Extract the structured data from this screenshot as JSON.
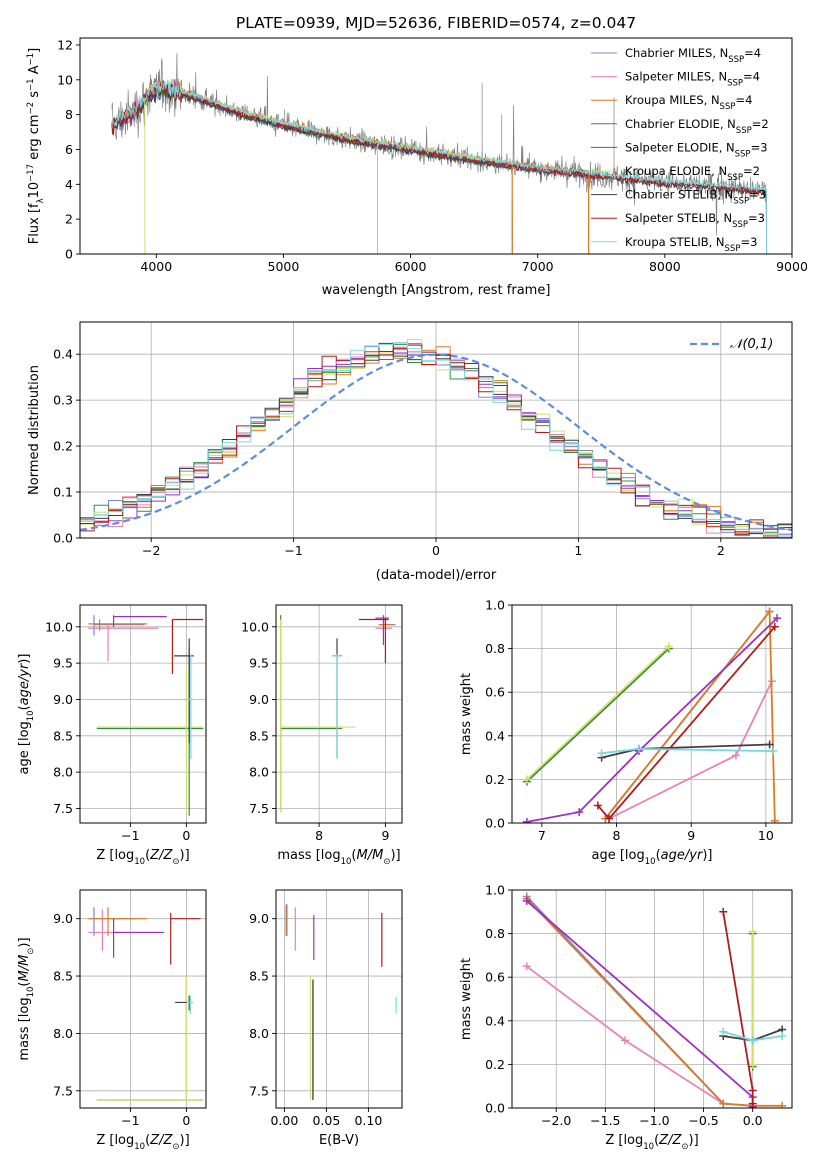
{
  "title": "PLATE=0939, MJD=52636, FIBERID=0574, z=0.047",
  "colors": {
    "Chabrier MILES": "#7b86d6",
    "Salpeter MILES": "#e883b9",
    "Kroupa MILES": "#dc7a22",
    "Chabrier ELODIE": "#3b8a3b",
    "Salpeter ELODIE": "#9b2fc2",
    "Kroupa ELODIE": "#cfe36c",
    "Chabrier STELIB": "#3f3f3f",
    "Salpeter STELIB": "#b01c1c",
    "Kroupa STELIB": "#78d8e0",
    "observed": "#808080",
    "normal": "#5a8fe0",
    "grid": "#b0b0b0"
  },
  "chart_data": [
    {
      "panel": "spectrum",
      "type": "line",
      "title": "PLATE=0939, MJD=52636, FIBERID=0574, z=0.047",
      "xlabel": "wavelength [Angstrom, rest frame]",
      "ylabel": "Flux [f_λ10^-17 erg cm^-2 s^-1 A^-1]",
      "xlim": [
        3400,
        9000
      ],
      "ylim": [
        0,
        12.4
      ],
      "xticks": [
        "4000",
        "5000",
        "6000",
        "7000",
        "8000",
        "9000"
      ],
      "yticks": [
        "0",
        "2",
        "4",
        "6",
        "8",
        "10",
        "12"
      ],
      "grid": false,
      "legend_position": "top-right",
      "legend": [
        {
          "name": "Chabrier MILES",
          "nssp": "4"
        },
        {
          "name": "Salpeter MILES",
          "nssp": "4"
        },
        {
          "name": "Kroupa MILES",
          "nssp": "4"
        },
        {
          "name": "Chabrier ELODIE",
          "nssp": "2"
        },
        {
          "name": "Salpeter ELODIE",
          "nssp": "3"
        },
        {
          "name": "Kroupa ELODIE",
          "nssp": "2"
        },
        {
          "name": "Chabrier STELIB",
          "nssp": "3"
        },
        {
          "name": "Salpeter STELIB",
          "nssp": "3"
        },
        {
          "name": "Kroupa STELIB",
          "nssp": "3"
        }
      ],
      "continuum": {
        "x": [
          3650,
          3800,
          3950,
          4050,
          4300,
          4700,
          5000,
          5500,
          6000,
          6500,
          7000,
          7500,
          8000,
          8500,
          8800
        ],
        "y": [
          7.4,
          8.0,
          9.2,
          9.6,
          9.0,
          8.0,
          7.4,
          6.6,
          6.0,
          5.4,
          4.9,
          4.5,
          4.1,
          3.8,
          3.6
        ]
      },
      "model_range": {
        "MILES": [
          3650,
          7400
        ],
        "ELODIE": [
          3900,
          6800
        ],
        "STELIB": [
          3650,
          8800
        ]
      }
    },
    {
      "panel": "residuals",
      "type": "histogram",
      "xlabel": "(data-model)/error",
      "ylabel": "Normed distribution",
      "xlim": [
        -2.5,
        2.5
      ],
      "ylim": [
        0,
        0.47
      ],
      "xticks": [
        "−2",
        "−1",
        "0",
        "1",
        "2"
      ],
      "yticks": [
        "0.0",
        "0.1",
        "0.2",
        "0.3",
        "0.4"
      ],
      "grid": true,
      "legend": [
        "𝒩(0,1)"
      ],
      "legend_position": "top-right",
      "bin_width": 0.1
    },
    {
      "panel": "age_vs_Z",
      "type": "errorbar",
      "xlabel": "Z [log10(Z/Z⊙)]",
      "ylabel": "age  [log10(age/yr)]",
      "xlim": [
        -1.9,
        0.35
      ],
      "ylim": [
        7.3,
        10.3
      ],
      "xticks": [
        "−1",
        "0"
      ],
      "yticks": [
        "7.5",
        "8.0",
        "8.5",
        "9.0",
        "9.5",
        "10.0"
      ],
      "points": [
        {
          "model": "Chabrier MILES",
          "x": -1.65,
          "y": 10.03,
          "xlo": -1.65,
          "xhi": -0.75,
          "ylo": 9.88,
          "yhi": 10.16
        },
        {
          "model": "Salpeter MILES",
          "x": -1.4,
          "y": 9.98,
          "xlo": -1.75,
          "xhi": -0.5,
          "ylo": 9.52,
          "yhi": 10.05
        },
        {
          "model": "Kroupa MILES",
          "x": -1.55,
          "y": 10.04,
          "xlo": -1.75,
          "xhi": -0.7,
          "ylo": 9.95,
          "yhi": 10.1
        },
        {
          "model": "Chabrier ELODIE",
          "x": 0.05,
          "y": 8.6,
          "xlo": -1.6,
          "xhi": 0.3,
          "ylo": 7.4,
          "yhi": 9.7
        },
        {
          "model": "Salpeter ELODIE",
          "x": -1.3,
          "y": 10.14,
          "xlo": -1.3,
          "xhi": -0.35,
          "ylo": 10.0,
          "yhi": 10.16
        },
        {
          "model": "Kroupa ELODIE",
          "x": 0.0,
          "y": 8.62,
          "xlo": -1.6,
          "xhi": 0.3,
          "ylo": 7.45,
          "yhi": 9.45
        },
        {
          "model": "Chabrier STELIB",
          "x": 0.05,
          "y": 9.6,
          "xlo": -0.22,
          "xhi": 0.13,
          "ylo": 8.4,
          "yhi": 9.84
        },
        {
          "model": "Salpeter STELIB",
          "x": -0.25,
          "y": 10.1,
          "xlo": -0.25,
          "xhi": 0.3,
          "ylo": 9.35,
          "yhi": 10.1
        },
        {
          "model": "Kroupa STELIB",
          "x": 0.08,
          "y": 9.0,
          "xlo": -0.05,
          "xhi": 0.15,
          "ylo": 8.18,
          "yhi": 9.62
        }
      ]
    },
    {
      "panel": "age_vs_mass",
      "type": "errorbar",
      "xlabel": "mass [log10(M/M⊙)]",
      "ylabel": "",
      "xlim": [
        7.35,
        9.25
      ],
      "ylim": [
        7.3,
        10.3
      ],
      "xticks": [
        "8",
        "9"
      ],
      "yticks": [
        "7.5",
        "8.0",
        "8.5",
        "9.0",
        "9.5",
        "10.0"
      ],
      "points": [
        {
          "model": "Chabrier MILES",
          "x": 9.0,
          "y": 10.03,
          "xlo": 8.9,
          "xhi": 9.15,
          "ylo": 9.98,
          "yhi": 10.08
        },
        {
          "model": "Salpeter MILES",
          "x": 9.0,
          "y": 9.98,
          "xlo": 8.85,
          "xhi": 9.1,
          "ylo": 9.95,
          "yhi": 10.1
        },
        {
          "model": "Kroupa MILES",
          "x": 9.0,
          "y": 10.03,
          "xlo": 8.9,
          "xhi": 9.1,
          "ylo": 9.98,
          "yhi": 10.1
        },
        {
          "model": "Chabrier ELODIE",
          "x": 7.42,
          "y": 8.6,
          "xlo": 7.42,
          "xhi": 8.35,
          "ylo": 7.45,
          "yhi": 10.16
        },
        {
          "model": "Salpeter ELODIE",
          "x": 8.97,
          "y": 10.12,
          "xlo": 8.85,
          "xhi": 9.05,
          "ylo": 9.75,
          "yhi": 10.16
        },
        {
          "model": "Kroupa ELODIE",
          "x": 7.42,
          "y": 8.62,
          "xlo": 7.42,
          "xhi": 8.55,
          "ylo": 7.45,
          "yhi": 10.1
        },
        {
          "model": "Chabrier STELIB",
          "x": 8.27,
          "y": 9.6,
          "xlo": 8.2,
          "xhi": 8.35,
          "ylo": 8.2,
          "yhi": 9.84
        },
        {
          "model": "Salpeter STELIB",
          "x": 9.0,
          "y": 10.1,
          "xlo": 8.6,
          "xhi": 9.05,
          "ylo": 9.5,
          "yhi": 10.12
        },
        {
          "model": "Kroupa STELIB",
          "x": 8.27,
          "y": 9.6,
          "xlo": 8.2,
          "xhi": 8.35,
          "ylo": 8.18,
          "yhi": 9.62
        }
      ]
    },
    {
      "panel": "weight_vs_age",
      "type": "line",
      "xlabel": "age  [log10(age/yr)]",
      "ylabel": "mass weight",
      "xlim": [
        6.6,
        10.35
      ],
      "ylim": [
        0,
        1.0
      ],
      "xticks": [
        "7",
        "8",
        "9",
        "10"
      ],
      "yticks": [
        "0.0",
        "0.2",
        "0.4",
        "0.6",
        "0.8",
        "1.0"
      ],
      "grid": true,
      "series": [
        {
          "model": "Chabrier MILES",
          "x": [
            7.85,
            10.05
          ],
          "y": [
            0.02,
            0.97
          ]
        },
        {
          "model": "Salpeter MILES",
          "x": [
            7.9,
            9.6,
            10.08
          ],
          "y": [
            0.02,
            0.31,
            0.65
          ]
        },
        {
          "model": "Kroupa MILES",
          "x": [
            7.85,
            10.05,
            10.12
          ],
          "y": [
            0.02,
            0.97,
            0.01
          ]
        },
        {
          "model": "Chabrier ELODIE",
          "x": [
            6.8,
            8.7
          ],
          "y": [
            0.19,
            0.8
          ]
        },
        {
          "model": "Salpeter ELODIE",
          "x": [
            6.8,
            7.5,
            8.3,
            10.15
          ],
          "y": [
            0.005,
            0.05,
            0.33,
            0.94
          ]
        },
        {
          "model": "Kroupa ELODIE",
          "x": [
            6.8,
            8.7
          ],
          "y": [
            0.2,
            0.81
          ]
        },
        {
          "model": "Chabrier STELIB",
          "x": [
            7.8,
            8.3,
            10.05
          ],
          "y": [
            0.3,
            0.34,
            0.36
          ]
        },
        {
          "model": "Salpeter STELIB",
          "x": [
            7.75,
            7.9,
            10.12
          ],
          "y": [
            0.08,
            0.02,
            0.9
          ]
        },
        {
          "model": "Kroupa STELIB",
          "x": [
            7.8,
            8.3,
            10.1
          ],
          "y": [
            0.32,
            0.34,
            0.33
          ]
        }
      ]
    },
    {
      "panel": "mass_vs_Z",
      "type": "errorbar",
      "xlabel": "Z [log10(Z/Z⊙)]",
      "ylabel": "mass [log10(M/M⊙)]",
      "xlim": [
        -1.9,
        0.35
      ],
      "ylim": [
        7.35,
        9.25
      ],
      "xticks": [
        "−1",
        "0"
      ],
      "yticks": [
        "7.5",
        "8.0",
        "8.5",
        "9.0"
      ],
      "points": [
        {
          "model": "Chabrier MILES",
          "x": -1.65,
          "y": 9.0,
          "xlo": -1.65,
          "xhi": -0.9,
          "ylo": 8.85,
          "yhi": 9.1
        },
        {
          "model": "Salpeter MILES",
          "x": -1.5,
          "y": 8.88,
          "xlo": -1.75,
          "xhi": -0.5,
          "ylo": 8.72,
          "yhi": 9.08
        },
        {
          "model": "Kroupa MILES",
          "x": -1.4,
          "y": 9.0,
          "xlo": -1.75,
          "xhi": -0.7,
          "ylo": 8.85,
          "yhi": 9.1
        },
        {
          "model": "Chabrier ELODIE",
          "x": 0.0,
          "y": 7.42,
          "xlo": -1.6,
          "xhi": 0.3,
          "ylo": 7.42,
          "yhi": 8.5
        },
        {
          "model": "Salpeter ELODIE",
          "x": -1.3,
          "y": 8.88,
          "xlo": -1.3,
          "xhi": -0.4,
          "ylo": 8.66,
          "yhi": 9.0
        },
        {
          "model": "Kroupa ELODIE",
          "x": 0.0,
          "y": 7.42,
          "xlo": -1.6,
          "xhi": 0.3,
          "ylo": 7.42,
          "yhi": 8.5
        },
        {
          "model": "Chabrier STELIB",
          "x": 0.05,
          "y": 8.27,
          "xlo": -0.2,
          "xhi": 0.1,
          "ylo": 8.2,
          "yhi": 8.33
        },
        {
          "model": "Salpeter STELIB",
          "x": -0.28,
          "y": 9.0,
          "xlo": -0.28,
          "xhi": 0.25,
          "ylo": 8.6,
          "yhi": 9.05
        },
        {
          "model": "Kroupa STELIB",
          "x": 0.07,
          "y": 8.27,
          "xlo": 0.0,
          "xhi": 0.12,
          "ylo": 8.17,
          "yhi": 8.33
        }
      ]
    },
    {
      "panel": "mass_vs_EBV",
      "type": "errorbar",
      "xlabel": "E(B-V)",
      "ylabel": "",
      "xlim": [
        -0.01,
        0.14
      ],
      "ylim": [
        7.35,
        9.25
      ],
      "xticks": [
        "0.00",
        "0.05",
        "0.10"
      ],
      "yticks": [
        "7.5",
        "8.0",
        "8.5",
        "9.0"
      ],
      "points": [
        {
          "model": "Chabrier MILES",
          "x": 0.003,
          "y": 9.0,
          "ylo": 8.85,
          "yhi": 9.13
        },
        {
          "model": "Salpeter MILES",
          "x": 0.013,
          "y": 8.95,
          "ylo": 8.72,
          "yhi": 9.1
        },
        {
          "model": "Kroupa MILES",
          "x": 0.002,
          "y": 9.0,
          "ylo": 8.85,
          "yhi": 9.12
        },
        {
          "model": "Chabrier ELODIE",
          "x": 0.034,
          "y": 7.9,
          "ylo": 7.42,
          "yhi": 8.47
        },
        {
          "model": "Salpeter ELODIE",
          "x": 0.035,
          "y": 8.88,
          "ylo": 8.64,
          "yhi": 9.03
        },
        {
          "model": "Kroupa ELODIE",
          "x": 0.031,
          "y": 7.9,
          "ylo": 7.42,
          "yhi": 8.5
        },
        {
          "model": "Chabrier STELIB",
          "x": 0.034,
          "y": 7.9,
          "ylo": 7.42,
          "yhi": 8.47
        },
        {
          "model": "Salpeter STELIB",
          "x": 0.116,
          "y": 8.8,
          "ylo": 8.58,
          "yhi": 9.05
        },
        {
          "model": "Kroupa STELIB",
          "x": 0.133,
          "y": 8.25,
          "ylo": 8.17,
          "yhi": 8.32
        }
      ]
    },
    {
      "panel": "weight_vs_Z",
      "type": "line",
      "xlabel": "Z [log10(Z/Z⊙)]",
      "ylabel": "mass weight",
      "xlim": [
        -2.45,
        0.4
      ],
      "ylim": [
        0,
        1.0
      ],
      "xticks": [
        "−2.0",
        "−1.5",
        "−1.0",
        "−0.5",
        "0.0"
      ],
      "yticks": [
        "0.0",
        "0.2",
        "0.4",
        "0.6",
        "0.8",
        "1.0"
      ],
      "grid": true,
      "series": [
        {
          "model": "Chabrier MILES",
          "x": [
            -2.3,
            -0.3,
            0.0
          ],
          "y": [
            0.97,
            0.02,
            0.01
          ]
        },
        {
          "model": "Salpeter MILES",
          "x": [
            -2.3,
            -1.3,
            -0.3
          ],
          "y": [
            0.65,
            0.31,
            0.02
          ]
        },
        {
          "model": "Kroupa MILES",
          "x": [
            -2.3,
            -0.3,
            0.0,
            0.3
          ],
          "y": [
            0.96,
            0.02,
            0.01,
            0.01
          ]
        },
        {
          "model": "Chabrier ELODIE",
          "x": [
            0.0,
            0.0
          ],
          "y": [
            0.19,
            0.8
          ]
        },
        {
          "model": "Salpeter ELODIE",
          "x": [
            -2.3,
            0.0,
            0.0
          ],
          "y": [
            0.95,
            0.05,
            0.005
          ]
        },
        {
          "model": "Kroupa ELODIE",
          "x": [
            0.0,
            0.0
          ],
          "y": [
            0.2,
            0.81
          ]
        },
        {
          "model": "Chabrier STELIB",
          "x": [
            -0.3,
            0.0,
            0.3
          ],
          "y": [
            0.33,
            0.31,
            0.36
          ]
        },
        {
          "model": "Salpeter STELIB",
          "x": [
            -0.3,
            0.0,
            0.0
          ],
          "y": [
            0.9,
            0.08,
            0.02
          ]
        },
        {
          "model": "Kroupa STELIB",
          "x": [
            -0.3,
            0.0,
            0.3
          ],
          "y": [
            0.35,
            0.31,
            0.33
          ]
        }
      ]
    }
  ]
}
